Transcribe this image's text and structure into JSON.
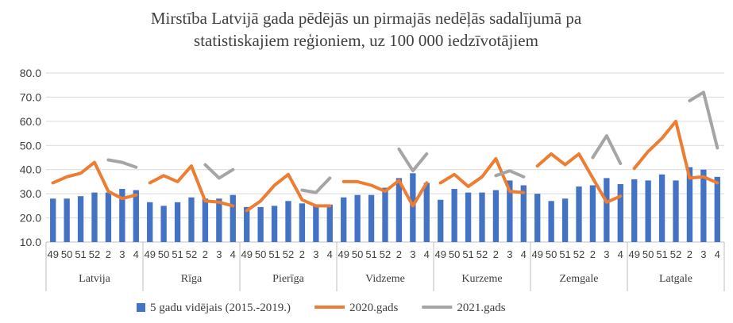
{
  "chart_data": {
    "type": "bar",
    "title": "Mirstība Latvijā gada pēdējās un pirmajās nedēļās sadalījumā pa statistiskajiem reģioniem, uz 100 000 iedzīvotājiem",
    "title_lines": [
      "Mirstība Latvijā gada pēdējās un pirmajās nedēļās sadalījumā pa",
      "statistiskajiem reģioniem, uz 100 000 iedzīvotājiem"
    ],
    "ylim": [
      10,
      80
    ],
    "yticks": [
      "10.0",
      "20.0",
      "30.0",
      "40.0",
      "50.0",
      "60.0",
      "70.0",
      "80.0"
    ],
    "grid": true,
    "legend_position": "bottom",
    "week_labels": [
      "49",
      "50",
      "51",
      "52",
      "2",
      "3",
      "4"
    ],
    "groups": [
      {
        "name": "Latvija",
        "bars": [
          28.0,
          28.0,
          29.0,
          30.5,
          30.5,
          32.0,
          31.5
        ],
        "y2020": [
          34.5,
          37.0,
          38.5,
          43.0,
          31.0,
          28.0,
          29.5
        ],
        "y2021": [
          null,
          null,
          null,
          null,
          44.0,
          43.0,
          41.0
        ]
      },
      {
        "name": "Rīga",
        "bars": [
          26.5,
          25.0,
          26.5,
          28.5,
          28.0,
          28.0,
          29.5
        ],
        "y2020": [
          34.5,
          37.5,
          35.0,
          41.5,
          27.0,
          26.5,
          25.0
        ],
        "y2021": [
          null,
          null,
          null,
          null,
          42.0,
          36.5,
          40.0
        ]
      },
      {
        "name": "Pierīga",
        "bars": [
          24.5,
          24.5,
          25.0,
          27.0,
          26.0,
          25.0,
          25.5
        ],
        "y2020": [
          23.0,
          27.0,
          33.5,
          38.0,
          27.5,
          25.0,
          25.0
        ],
        "y2021": [
          null,
          null,
          null,
          null,
          31.5,
          30.5,
          36.5
        ]
      },
      {
        "name": "Vidzeme",
        "bars": [
          28.5,
          29.5,
          29.5,
          32.5,
          36.5,
          38.5,
          34.5
        ],
        "y2020": [
          35.0,
          35.0,
          33.5,
          31.0,
          35.5,
          25.0,
          34.5
        ],
        "y2021": [
          null,
          null,
          null,
          null,
          48.5,
          39.5,
          46.5
        ]
      },
      {
        "name": "Kurzeme",
        "bars": [
          27.5,
          32.0,
          30.5,
          30.5,
          31.5,
          35.5,
          33.5
        ],
        "y2020": [
          34.5,
          38.0,
          33.0,
          37.0,
          44.5,
          31.0,
          30.5
        ],
        "y2021": [
          null,
          null,
          null,
          null,
          37.5,
          39.5,
          37.0
        ]
      },
      {
        "name": "Zemgale",
        "bars": [
          30.0,
          27.0,
          28.0,
          33.0,
          33.5,
          36.5,
          34.0
        ],
        "y2020": [
          41.5,
          46.5,
          42.0,
          46.5,
          36.5,
          26.5,
          29.0
        ],
        "y2021": [
          null,
          null,
          null,
          null,
          45.0,
          54.0,
          42.5
        ]
      },
      {
        "name": "Latgale",
        "bars": [
          36.0,
          35.5,
          38.0,
          35.5,
          41.0,
          40.0,
          37.0
        ],
        "y2020": [
          40.5,
          47.5,
          53.0,
          60.0,
          36.5,
          37.0,
          34.5
        ],
        "y2021": [
          null,
          null,
          null,
          null,
          68.5,
          72.0,
          49.0
        ]
      }
    ],
    "series": [
      {
        "name": "5 gadu vidējais (2015.-2019.)",
        "key": "bars",
        "type": "bar",
        "color": "#4472c4"
      },
      {
        "name": "2020.gads",
        "key": "y2020",
        "type": "line",
        "color": "#ed7d31"
      },
      {
        "name": "2021.gads",
        "key": "y2021",
        "type": "line",
        "color": "#a5a5a5"
      }
    ],
    "colors": {
      "grid": "#d9d9d9",
      "axis": "#bfbfbf"
    }
  }
}
